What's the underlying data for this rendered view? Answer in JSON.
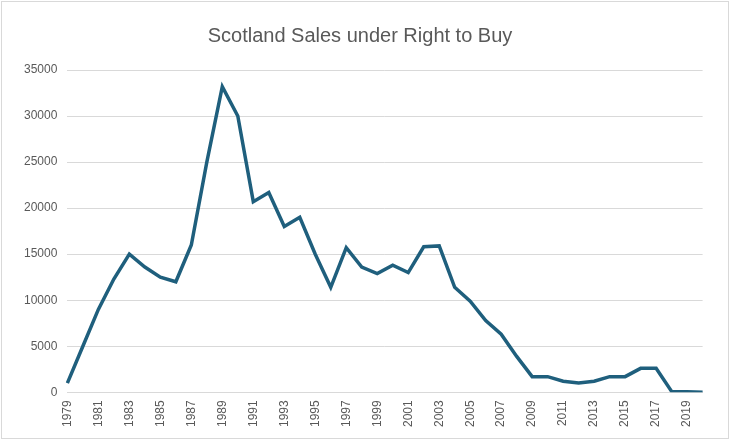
{
  "chart_data": {
    "type": "line",
    "title": "Scotland Sales under Right to Buy",
    "categories": [
      "1979",
      null,
      "1981",
      null,
      "1983",
      null,
      "1985",
      null,
      "1987",
      null,
      "1989",
      null,
      "1991",
      null,
      "1993",
      null,
      "1995",
      null,
      "1997",
      null,
      "1999",
      null,
      "2001",
      null,
      "2003",
      null,
      "2005",
      null,
      "2007",
      null,
      "2009",
      null,
      "2011",
      null,
      "2013",
      null,
      "2015",
      null,
      "2017",
      null,
      "2019",
      null
    ],
    "values": [
      1000,
      5000,
      9000,
      12300,
      15000,
      13600,
      12500,
      12000,
      16000,
      25000,
      33200,
      30000,
      20700,
      21700,
      18000,
      19000,
      15000,
      11400,
      15700,
      13600,
      12900,
      13800,
      13000,
      15800,
      15900,
      11400,
      9900,
      7800,
      6300,
      3900,
      1700,
      1700,
      1200,
      1000,
      1200,
      1700,
      1700,
      2600,
      2600,
      100,
      50,
      0
    ],
    "color": "#1f5f7d",
    "ylim": [
      0,
      35000
    ],
    "yticks": [
      0,
      5000,
      10000,
      15000,
      20000,
      25000,
      30000,
      35000
    ],
    "grid": true
  }
}
